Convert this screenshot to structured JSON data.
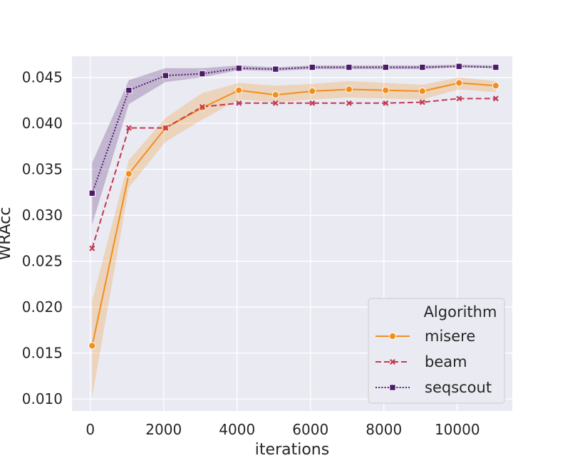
{
  "chart_data": {
    "type": "line",
    "xlabel": "iterations",
    "ylabel": "WRAcc",
    "xlim": [
      -500,
      11500
    ],
    "ylim": [
      0.0087,
      0.0473
    ],
    "xticks": [
      0,
      2000,
      4000,
      6000,
      8000,
      10000
    ],
    "xtick_labels": [
      "0",
      "2000",
      "4000",
      "6000",
      "8000",
      "10000"
    ],
    "yticks": [
      0.01,
      0.015,
      0.02,
      0.025,
      0.03,
      0.035,
      0.04,
      0.045
    ],
    "ytick_labels": [
      "0.010",
      "0.015",
      "0.020",
      "0.025",
      "0.030",
      "0.035",
      "0.040",
      "0.045"
    ],
    "grid": true,
    "legend": {
      "title": "Algorithm",
      "placement": "lower-right"
    },
    "x": [
      50,
      1050,
      2050,
      3050,
      4050,
      5050,
      6050,
      7050,
      8050,
      9050,
      10050,
      11050
    ],
    "series": [
      {
        "name": "misere",
        "color": "#f28e1c",
        "marker": "circle",
        "dash": "solid",
        "values": [
          0.0158,
          0.0345,
          0.0395,
          0.0417,
          0.0436,
          0.0431,
          0.0435,
          0.0437,
          0.0436,
          0.0435,
          0.0444,
          0.0441
        ],
        "ci_lower": [
          0.0102,
          0.033,
          0.038,
          0.0404,
          0.0426,
          0.0423,
          0.0426,
          0.0428,
          0.0427,
          0.0426,
          0.0437,
          0.0434
        ],
        "ci_upper": [
          0.0207,
          0.036,
          0.0406,
          0.0433,
          0.0444,
          0.0441,
          0.0443,
          0.0446,
          0.0444,
          0.0442,
          0.045,
          0.0446
        ]
      },
      {
        "name": "beam",
        "color": "#c23a54",
        "marker": "x",
        "dash": "dashed",
        "values": [
          0.0264,
          0.0395,
          0.0395,
          0.0418,
          0.0422,
          0.0422,
          0.0422,
          0.0422,
          0.0422,
          0.0423,
          0.0427,
          0.0427
        ]
      },
      {
        "name": "seqscout",
        "color": "#4e1a6b",
        "marker": "square",
        "dash": "dotted",
        "values": [
          0.0324,
          0.0436,
          0.0452,
          0.0454,
          0.046,
          0.0459,
          0.0461,
          0.0461,
          0.0461,
          0.0461,
          0.0462,
          0.0461
        ],
        "ci_lower": [
          0.029,
          0.0421,
          0.0445,
          0.045,
          0.0458,
          0.0457,
          0.0459,
          0.0459,
          0.0459,
          0.0459,
          0.0461,
          0.046
        ],
        "ci_upper": [
          0.0357,
          0.0447,
          0.046,
          0.046,
          0.0463,
          0.0461,
          0.0463,
          0.0463,
          0.0463,
          0.0463,
          0.0464,
          0.0463
        ]
      }
    ]
  }
}
